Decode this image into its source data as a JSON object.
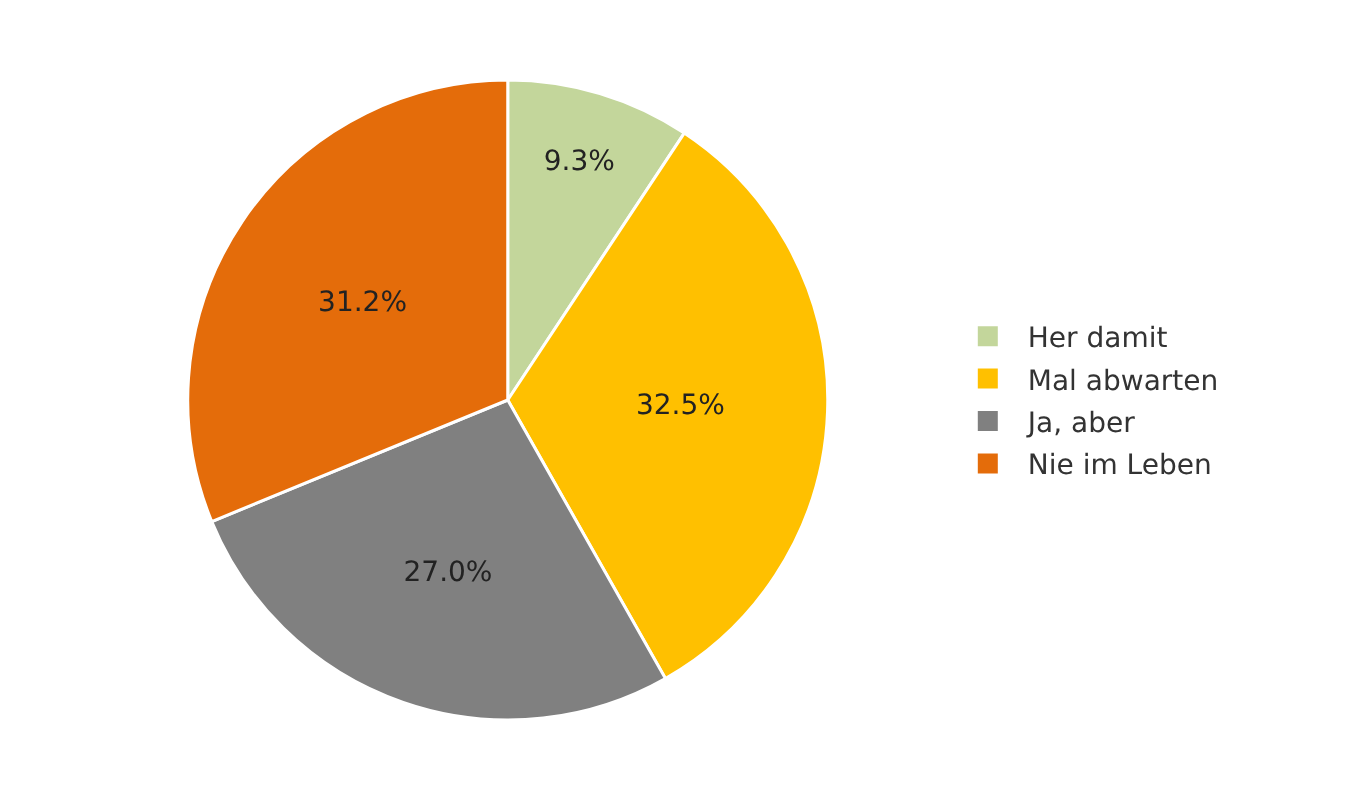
{
  "chart_data": {
    "type": "pie",
    "categories": [
      "Her damit",
      "Mal abwarten",
      "Ja, aber",
      "Nie im Leben"
    ],
    "values": [
      9.3,
      32.5,
      27.0,
      31.2
    ],
    "value_labels": [
      "9.3%",
      "32.5%",
      "27.0%",
      "31.2%"
    ],
    "colors": [
      "#c3d69b",
      "#ffc000",
      "#808080",
      "#e46c0a"
    ],
    "legend": "right"
  }
}
